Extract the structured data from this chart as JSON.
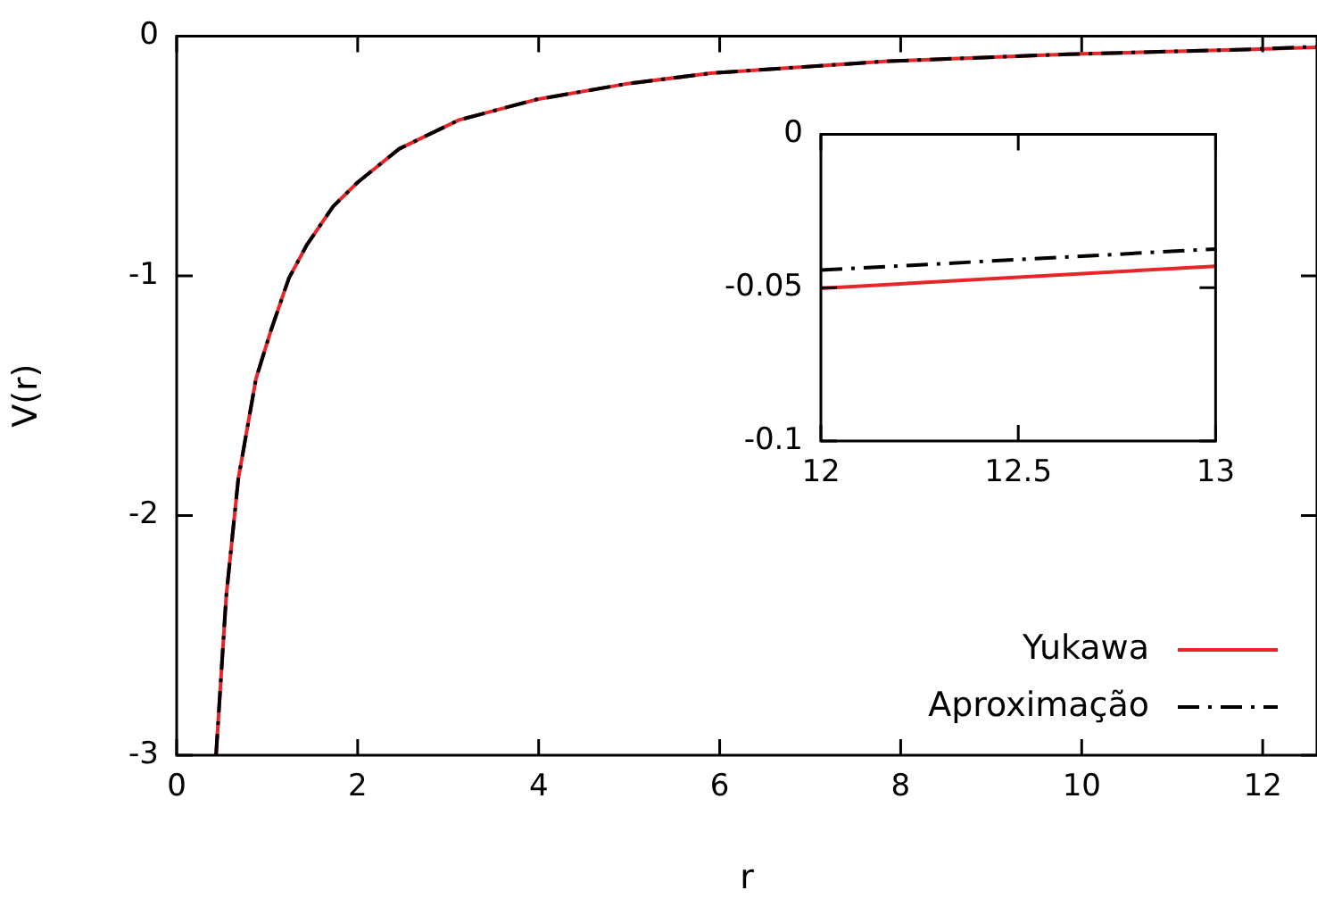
{
  "chart_data": [
    {
      "type": "line",
      "xlabel": "r",
      "ylabel": "V(r)",
      "x": [
        0.435,
        0.547,
        0.68,
        0.876,
        1.04,
        1.24,
        1.44,
        1.73,
        2.0,
        2.46,
        3.12,
        3.97,
        4.96,
        5.9,
        7.86,
        9.84,
        11.8,
        12.6
      ],
      "series": [
        {
          "name": "Yukawa",
          "color": "#e8262a",
          "line_style": "solid",
          "values": [
            -3,
            -2.34,
            -1.85,
            -1.43,
            -1.23,
            -1.01,
            -0.87,
            -0.71,
            -0.61,
            -0.47,
            -0.35,
            -0.265,
            -0.2,
            -0.155,
            -0.105,
            -0.076,
            -0.056,
            -0.047
          ]
        },
        {
          "name": "Aproximação",
          "color": "#000000",
          "line_style": "dashed",
          "values": [
            -3,
            -2.34,
            -1.85,
            -1.43,
            -1.23,
            -1.01,
            -0.87,
            -0.71,
            -0.61,
            -0.47,
            -0.35,
            -0.265,
            -0.2,
            -0.155,
            -0.105,
            -0.076,
            -0.056,
            -0.044
          ]
        }
      ],
      "xlim": [
        0,
        12.6
      ],
      "xticks": [
        0,
        2,
        4,
        6,
        8,
        10,
        12
      ],
      "ylim": [
        -3,
        0
      ],
      "yticks": [
        -3,
        -2,
        -1,
        0
      ],
      "grid": false,
      "legend": "bottom right",
      "marker": "none"
    },
    {
      "type": "line",
      "x": [
        12,
        13
      ],
      "series": [
        {
          "color": "#e8262a",
          "line_style": "solid",
          "values": [
            -0.0502,
            -0.043
          ]
        },
        {
          "color": "#000000",
          "line_style": "dashed",
          "values": [
            -0.0443,
            -0.0374
          ]
        }
      ],
      "xlim": [
        12,
        13
      ],
      "xticks": [
        12,
        12.5,
        13
      ],
      "ylim": [
        -0.1,
        0
      ],
      "yticks": [
        -0.1,
        -0.05,
        0
      ],
      "grid": false,
      "marker": "none"
    }
  ]
}
